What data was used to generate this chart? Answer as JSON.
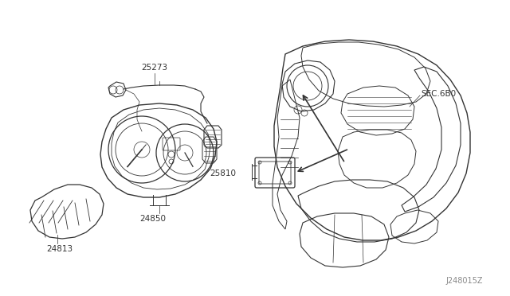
{
  "bg_color": "#ffffff",
  "line_color": "#333333",
  "fig_width": 6.4,
  "fig_height": 3.72,
  "dpi": 100,
  "label_fontsize": 7.0,
  "label_color": "#333333"
}
